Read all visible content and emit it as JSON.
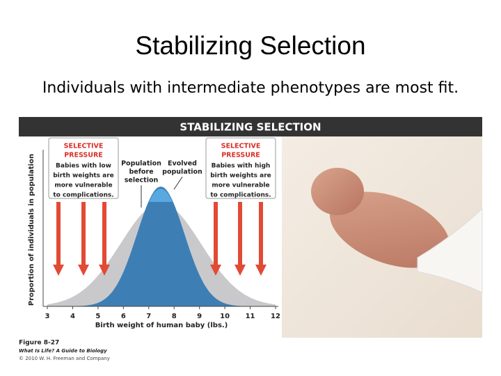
{
  "slide": {
    "title": "Stabilizing Selection",
    "subtitle": "Individuals with intermediate phenotypes are most fit."
  },
  "figure": {
    "title": "STABILIZING SELECTION",
    "left_box": {
      "heading": [
        "SELECTIVE",
        "PRESSURE"
      ],
      "text": [
        "Babies with low",
        "birth weights are",
        "more vulnerable",
        "to complications."
      ]
    },
    "right_box": {
      "heading": [
        "SELECTIVE",
        "PRESSURE"
      ],
      "text": [
        "Babies with high",
        "birth weights are",
        "more vulnerable",
        "to complications."
      ]
    },
    "annotations": [
      {
        "lines": [
          "Population",
          "before",
          "selection"
        ]
      },
      {
        "lines": [
          "Evolved",
          "population"
        ]
      }
    ],
    "y_axis_label": "Proportion of individuals in population",
    "x_axis_label": "Birth weight of human baby (lbs.)",
    "xticks": [
      3,
      4,
      5,
      6,
      7,
      8,
      9,
      10,
      11,
      12
    ]
  },
  "caption": {
    "figure": "Figure 8-27",
    "book": "What Is Life? A Guide to Biology",
    "copyright": "© 2010 W. H. Freeman and Company"
  }
}
